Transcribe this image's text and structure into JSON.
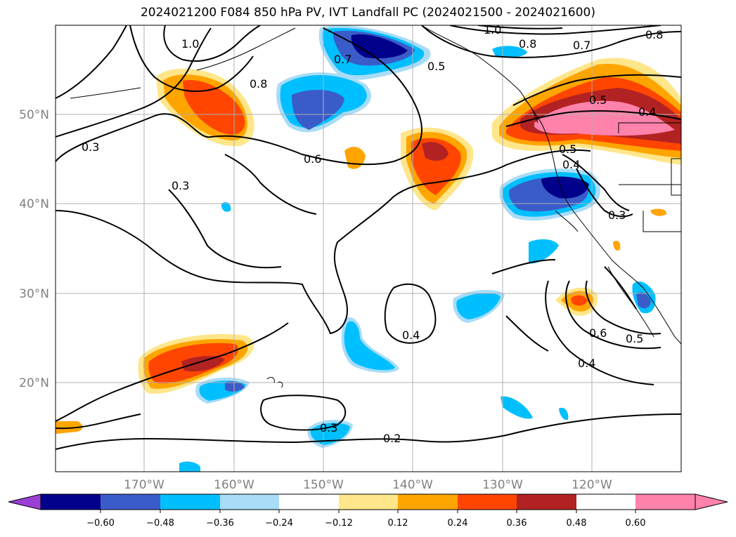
{
  "title": "2024021200 F084 850 hPa PV, IVT Landfall PC (2024021500 - 2024021600)",
  "map": {
    "lat_labels": [
      "50°N",
      "40°N",
      "30°N",
      "20°N"
    ],
    "lon_labels": [
      "170°W",
      "160°W",
      "150°W",
      "140°W",
      "130°W",
      "120°W"
    ],
    "contour_labels": [
      "1.0",
      "1.0",
      "0.8",
      "0.7",
      "0.8",
      "0.7",
      "0.5",
      "0.8",
      "0.3",
      "0.6",
      "0.3",
      "0.5",
      "0.5",
      "0.4",
      "0.4",
      "0.3",
      "0.4",
      "0.6",
      "0.5",
      "0.4",
      "0.3",
      "0.2"
    ]
  },
  "colorbar": {
    "colors": [
      "#9a3fd6",
      "#00008b",
      "#3a5cc9",
      "#00bfff",
      "#a8dcf7",
      "#ffffff",
      "#ffe68a",
      "#ffa500",
      "#ff4500",
      "#b22222",
      "#ff82ab"
    ],
    "ticks": [
      "−0.60",
      "−0.48",
      "−0.36",
      "−0.24",
      "−0.12",
      "0.12",
      "0.24",
      "0.36",
      "0.48",
      "0.60"
    ]
  }
}
